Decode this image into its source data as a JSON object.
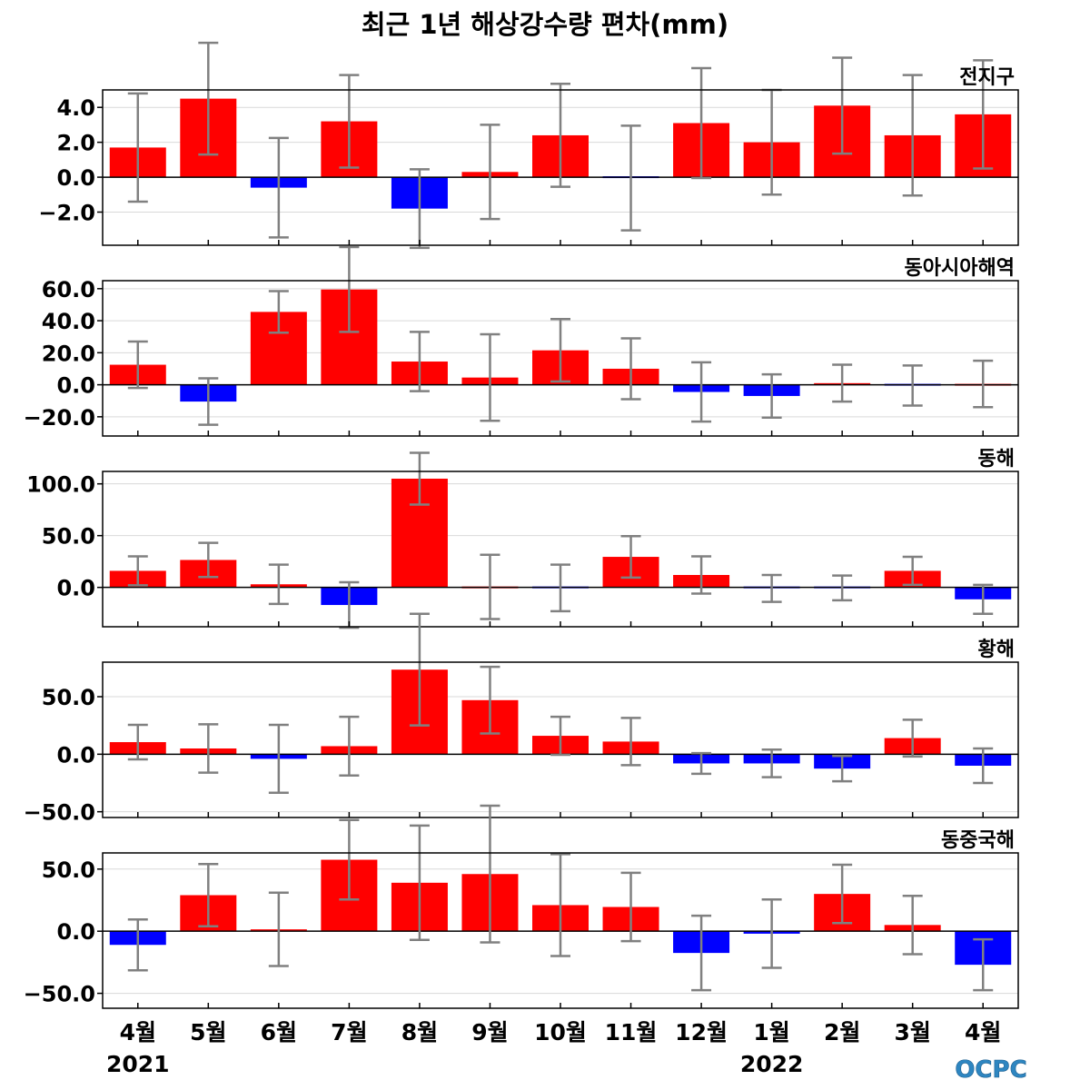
{
  "chart_data": {
    "type": "bar",
    "title": "최근 1년 해상강수량 편차(mm)",
    "categories": [
      "4월",
      "5월",
      "6월",
      "7월",
      "8월",
      "9월",
      "10월",
      "11월",
      "12월",
      "1월",
      "2월",
      "3월",
      "4월"
    ],
    "year_labels": [
      {
        "label": "2021",
        "category_index": 0
      },
      {
        "label": "2022",
        "category_index": 9
      }
    ],
    "positive_color": "#ff0000",
    "negative_color": "#0000ff",
    "errorbar_color": "#808080",
    "grid": true,
    "panels": [
      {
        "name": "전지구",
        "values": [
          1.7,
          4.5,
          -0.6,
          3.2,
          -1.8,
          0.3,
          2.4,
          -0.05,
          3.1,
          2.0,
          4.1,
          2.4,
          3.6
        ],
        "error": [
          3.1,
          3.2,
          2.85,
          2.65,
          2.25,
          2.7,
          2.95,
          3.0,
          3.15,
          3.0,
          2.75,
          3.45,
          3.1
        ],
        "ylim": [
          -3.9,
          5.0
        ],
        "yticks": [
          -2.0,
          0.0,
          2.0,
          4.0
        ],
        "ytick_labels": [
          "−2.0",
          "0.0",
          "2.0",
          "4.0"
        ]
      },
      {
        "name": "동아시아해역",
        "values": [
          12.5,
          -10.5,
          45.5,
          59.5,
          14.5,
          4.5,
          21.5,
          10.0,
          -4.5,
          -7.0,
          1.0,
          -0.5,
          0.5
        ],
        "error": [
          14.5,
          14.5,
          13.0,
          26.5,
          18.5,
          27.0,
          19.5,
          19.0,
          18.5,
          13.5,
          11.5,
          12.5,
          14.5
        ],
        "ylim": [
          -32,
          65
        ],
        "yticks": [
          -20.0,
          0.0,
          20.0,
          40.0,
          60.0
        ],
        "ytick_labels": [
          "−20.0",
          "0.0",
          "20.0",
          "40.0",
          "60.0"
        ]
      },
      {
        "name": "동해",
        "values": [
          16.0,
          26.5,
          3.0,
          -17.0,
          105.0,
          0.5,
          -0.5,
          29.5,
          12.0,
          -1.0,
          -0.5,
          16.0,
          -11.5
        ],
        "error": [
          14.0,
          16.5,
          19.0,
          22.0,
          25.0,
          31.0,
          22.5,
          20.0,
          18.0,
          13.0,
          12.0,
          13.5,
          14.0
        ],
        "ylim": [
          -38,
          112
        ],
        "yticks": [
          0.0,
          50.0,
          100.0
        ],
        "ytick_labels": [
          "0.0",
          "50.0",
          "100.0"
        ]
      },
      {
        "name": "황해",
        "values": [
          10.5,
          5.0,
          -4.0,
          7.0,
          73.5,
          47.0,
          16.0,
          11.0,
          -8.0,
          -8.0,
          -12.5,
          14.0,
          -10.0
        ],
        "error": [
          15.0,
          21.0,
          29.5,
          25.5,
          48.5,
          29.0,
          16.5,
          20.5,
          9.0,
          12.0,
          11.0,
          16.0,
          15.0
        ],
        "ylim": [
          -55,
          80
        ],
        "yticks": [
          -50.0,
          0.0,
          50.0
        ],
        "ytick_labels": [
          "−50.0",
          "0.0",
          "50.0"
        ]
      },
      {
        "name": "동중국해",
        "values": [
          -11.0,
          29.0,
          1.5,
          57.5,
          39.0,
          46.0,
          21.0,
          19.5,
          -17.5,
          -2.0,
          30.0,
          5.0,
          -27.0
        ],
        "error": [
          20.5,
          25.0,
          29.5,
          32.0,
          46.0,
          55.0,
          41.0,
          27.5,
          30.0,
          27.5,
          23.5,
          23.5,
          20.5
        ],
        "ylim": [
          -62,
          63
        ],
        "yticks": [
          -50.0,
          0.0,
          50.0
        ],
        "ytick_labels": [
          "−50.0",
          "0.0",
          "50.0"
        ]
      }
    ]
  },
  "logo": {
    "text": "OCPC",
    "color": "#2e86c1"
  }
}
